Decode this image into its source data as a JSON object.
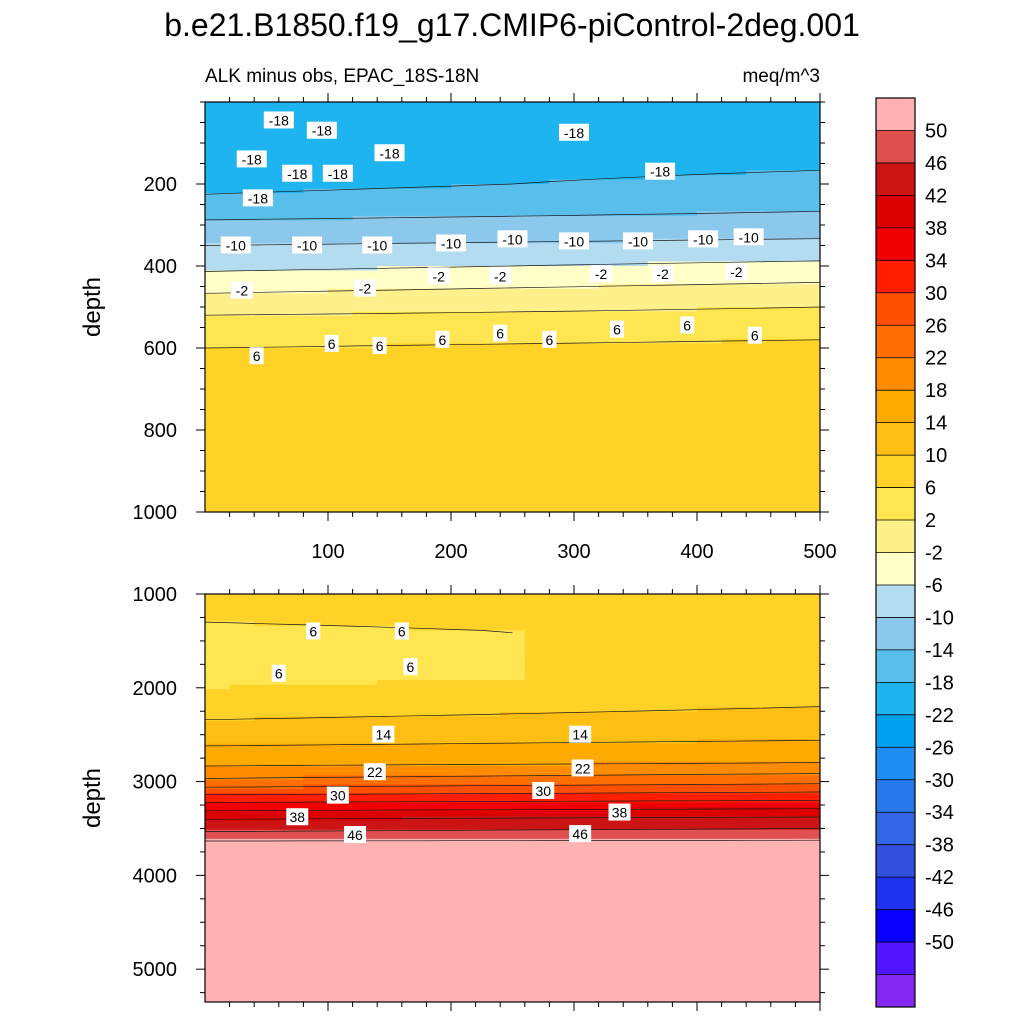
{
  "title": "b.e21.B1850.f19_g17.CMIP6-piControl-2deg.001",
  "subtitle_left": "ALK minus obs, EPAC_18S-18N",
  "subtitle_right": "meq/m^3",
  "colorbar_labels": [
    "50",
    "46",
    "42",
    "38",
    "34",
    "30",
    "26",
    "22",
    "18",
    "14",
    "10",
    "6",
    "2",
    "-2",
    "-6",
    "-10",
    "-14",
    "-18",
    "-22",
    "-26",
    "-30",
    "-34",
    "-38",
    "-42",
    "-46",
    "-50"
  ],
  "colorbar_colors": [
    "#ffb2b2",
    "#e05050",
    "#cc1414",
    "#dc0000",
    "#f00000",
    "#ff1e00",
    "#ff5000",
    "#ff6e00",
    "#ff8c00",
    "#ffaa00",
    "#ffbe14",
    "#ffd228",
    "#ffe650",
    "#fff08c",
    "#ffffc8",
    "#b4dcf0",
    "#8cc8eb",
    "#5abeeb",
    "#1eb4f0",
    "#00a0f0",
    "#1e8cf0",
    "#2878eb",
    "#3264e6",
    "#3250dc",
    "#1e32f0",
    "#0a00ff",
    "#5014ff",
    "#8228f0"
  ],
  "chart_data": [
    {
      "type": "heatmap",
      "panel": "upper",
      "ylabel": "depth",
      "xlim": [
        0,
        500
      ],
      "ylim": [
        1000,
        0
      ],
      "xticks": [
        100,
        200,
        300,
        400,
        500
      ],
      "yticks": [
        200,
        400,
        600,
        800,
        1000
      ],
      "contour_interval": 4,
      "units": "meq/m^3",
      "depth_profile": {
        "depth": [
          0,
          100,
          200,
          250,
          300,
          350,
          400,
          440,
          480,
          520,
          560,
          600,
          700,
          800,
          900,
          1000
        ],
        "value_at_x0": [
          -20,
          -20,
          -19,
          -17,
          -13,
          -10,
          -7,
          -4,
          -1,
          2,
          4,
          6,
          8,
          9,
          9,
          9
        ],
        "value_at_x500": [
          -20,
          -20,
          -17,
          -15,
          -12,
          -9,
          -5,
          -2,
          1,
          3,
          5,
          7,
          9,
          10,
          10,
          10
        ]
      },
      "contour_labels": [
        {
          "text": "-18",
          "x": 60,
          "y": 45
        },
        {
          "text": "-18",
          "x": 95,
          "y": 70
        },
        {
          "text": "-18",
          "x": 150,
          "y": 125
        },
        {
          "text": "-18",
          "x": 38,
          "y": 140
        },
        {
          "text": "-18",
          "x": 75,
          "y": 175
        },
        {
          "text": "-18",
          "x": 108,
          "y": 175
        },
        {
          "text": "-18",
          "x": 300,
          "y": 75
        },
        {
          "text": "-18",
          "x": 370,
          "y": 170
        },
        {
          "text": "-18",
          "x": 43,
          "y": 235
        },
        {
          "text": "-10",
          "x": 25,
          "y": 350
        },
        {
          "text": "-10",
          "x": 83,
          "y": 350
        },
        {
          "text": "-10",
          "x": 140,
          "y": 350
        },
        {
          "text": "-10",
          "x": 200,
          "y": 345
        },
        {
          "text": "-10",
          "x": 250,
          "y": 335
        },
        {
          "text": "-10",
          "x": 300,
          "y": 340
        },
        {
          "text": "-10",
          "x": 352,
          "y": 340
        },
        {
          "text": "-10",
          "x": 405,
          "y": 335
        },
        {
          "text": "-10",
          "x": 442,
          "y": 330
        },
        {
          "text": "-2",
          "x": 30,
          "y": 460
        },
        {
          "text": "-2",
          "x": 130,
          "y": 455
        },
        {
          "text": "-2",
          "x": 190,
          "y": 425
        },
        {
          "text": "-2",
          "x": 240,
          "y": 425
        },
        {
          "text": "-2",
          "x": 322,
          "y": 420
        },
        {
          "text": "-2",
          "x": 372,
          "y": 420
        },
        {
          "text": "-2",
          "x": 432,
          "y": 415
        },
        {
          "text": "6",
          "x": 42,
          "y": 620
        },
        {
          "text": "6",
          "x": 103,
          "y": 590
        },
        {
          "text": "6",
          "x": 142,
          "y": 595
        },
        {
          "text": "6",
          "x": 193,
          "y": 580
        },
        {
          "text": "6",
          "x": 240,
          "y": 565
        },
        {
          "text": "6",
          "x": 280,
          "y": 580
        },
        {
          "text": "6",
          "x": 335,
          "y": 555
        },
        {
          "text": "6",
          "x": 392,
          "y": 545
        },
        {
          "text": "6",
          "x": 447,
          "y": 570
        }
      ]
    },
    {
      "type": "heatmap",
      "panel": "lower",
      "ylabel": "depth",
      "xlim": [
        0,
        500
      ],
      "ylim": [
        5350,
        1000
      ],
      "yticks": [
        1000,
        2000,
        3000,
        4000,
        5000
      ],
      "contour_interval": 4,
      "units": "meq/m^3",
      "depth_profile": {
        "depth": [
          1000,
          1100,
          1400,
          1900,
          2100,
          2500,
          2800,
          3000,
          3200,
          3400,
          3600,
          3650,
          5350
        ],
        "value_at_x0": [
          9,
          8,
          5,
          5,
          7,
          12,
          17,
          23,
          33,
          42,
          48,
          51,
          51
        ],
        "value_at_x500": [
          9,
          9,
          7,
          7,
          9,
          13,
          18,
          25,
          34,
          43,
          49,
          51,
          51
        ]
      },
      "contour_labels": [
        {
          "text": "6",
          "x": 88,
          "y": 1400
        },
        {
          "text": "6",
          "x": 160,
          "y": 1400
        },
        {
          "text": "6",
          "x": 167,
          "y": 1780
        },
        {
          "text": "6",
          "x": 60,
          "y": 1850
        },
        {
          "text": "14",
          "x": 145,
          "y": 2500
        },
        {
          "text": "14",
          "x": 305,
          "y": 2500
        },
        {
          "text": "22",
          "x": 138,
          "y": 2900
        },
        {
          "text": "22",
          "x": 307,
          "y": 2860
        },
        {
          "text": "30",
          "x": 108,
          "y": 3150
        },
        {
          "text": "30",
          "x": 275,
          "y": 3100
        },
        {
          "text": "38",
          "x": 75,
          "y": 3380
        },
        {
          "text": "38",
          "x": 337,
          "y": 3330
        },
        {
          "text": "46",
          "x": 122,
          "y": 3570
        },
        {
          "text": "46",
          "x": 305,
          "y": 3560
        }
      ]
    }
  ]
}
